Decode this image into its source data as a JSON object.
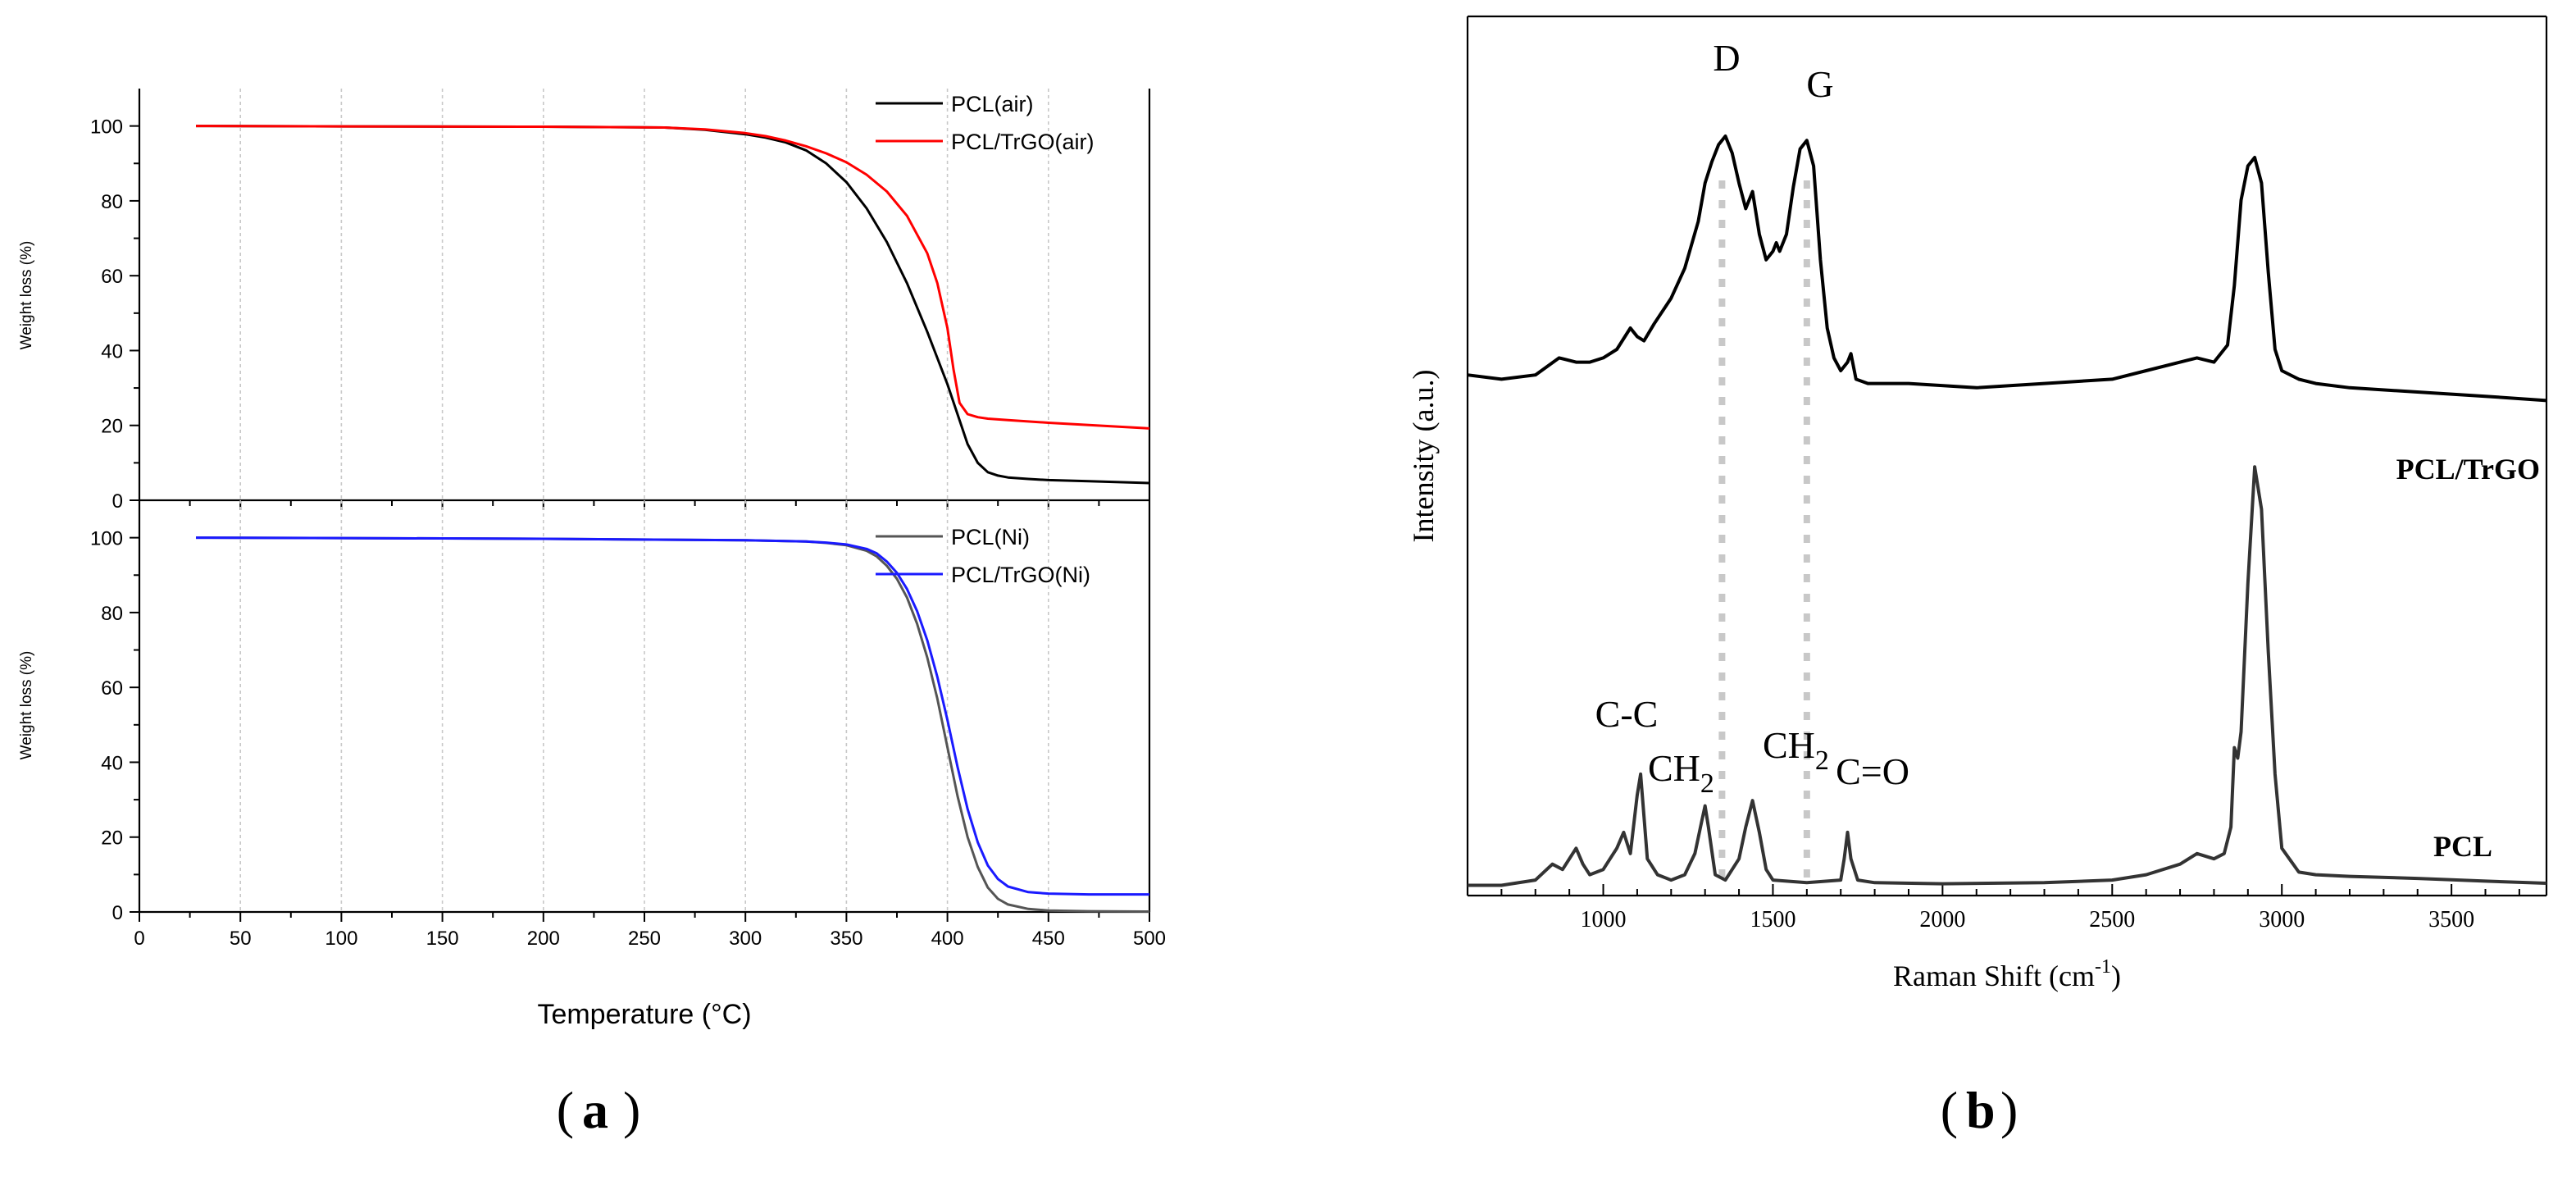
{
  "figure": {
    "panel_a_label": "a",
    "panel_b_label": "b"
  },
  "chart_data": [
    {
      "type": "line",
      "panel": "a-top",
      "title": "",
      "xlabel": "Temperature (°C)",
      "ylabel": "Weight loss (%)",
      "xlim": [
        0,
        500
      ],
      "ylim": [
        0,
        110
      ],
      "x_ticks": [
        0,
        50,
        100,
        150,
        200,
        250,
        300,
        350,
        400,
        450,
        500
      ],
      "y_ticks": [
        0,
        20,
        40,
        60,
        80,
        100
      ],
      "grid": "vertical-dashed",
      "legend_placement": "top-right",
      "series": [
        {
          "name": "PCL(air)",
          "color": "#000000",
          "x": [
            28,
            100,
            200,
            260,
            280,
            300,
            310,
            320,
            330,
            340,
            350,
            360,
            370,
            380,
            390,
            400,
            405,
            410,
            415,
            420,
            425,
            430,
            440,
            450,
            470,
            500
          ],
          "y": [
            100,
            99.9,
            99.8,
            99.6,
            99,
            97.8,
            96.9,
            95.6,
            93.5,
            90,
            85,
            78,
            69,
            58,
            45,
            31,
            23,
            15,
            10,
            7.5,
            6.6,
            6.1,
            5.7,
            5.4,
            5.1,
            4.6
          ]
        },
        {
          "name": "PCL/TrGO(air)",
          "color": "#ff0000",
          "x": [
            28,
            100,
            200,
            260,
            280,
            300,
            310,
            320,
            330,
            340,
            350,
            360,
            370,
            380,
            390,
            395,
            400,
            403,
            406,
            410,
            415,
            420,
            430,
            450,
            470,
            500
          ],
          "y": [
            100,
            99.9,
            99.8,
            99.6,
            99.1,
            98.1,
            97.3,
            96.1,
            94.6,
            92.7,
            90.3,
            87,
            82.5,
            76,
            66,
            58,
            46,
            35,
            26,
            23,
            22.2,
            21.8,
            21.4,
            20.7,
            20.1,
            19.2
          ]
        }
      ]
    },
    {
      "type": "line",
      "panel": "a-bottom",
      "title": "",
      "xlabel": "Temperature (°C)",
      "ylabel": "Weight loss (%)",
      "xlim": [
        0,
        500
      ],
      "ylim": [
        0,
        110
      ],
      "x_ticks": [
        0,
        50,
        100,
        150,
        200,
        250,
        300,
        350,
        400,
        450,
        500
      ],
      "y_ticks": [
        0,
        20,
        40,
        60,
        80,
        100
      ],
      "grid": "vertical-dashed",
      "legend_placement": "top-right",
      "series": [
        {
          "name": "PCL(Ni)",
          "color": "#555555",
          "x": [
            28,
            100,
            200,
            300,
            330,
            340,
            350,
            360,
            365,
            370,
            375,
            380,
            385,
            390,
            395,
            400,
            405,
            410,
            415,
            420,
            425,
            430,
            440,
            450,
            470,
            500
          ],
          "y": [
            100,
            99.9,
            99.7,
            99.3,
            99,
            98.6,
            98,
            96.5,
            95,
            92.5,
            89,
            84,
            77,
            68,
            57,
            44,
            31,
            20,
            12,
            6.5,
            3.5,
            2,
            0.8,
            0.4,
            0.2,
            0.1
          ]
        },
        {
          "name": "PCL/TrGO(Ni)",
          "color": "#1a1aff",
          "x": [
            28,
            100,
            200,
            300,
            330,
            340,
            350,
            360,
            365,
            370,
            375,
            380,
            385,
            390,
            395,
            400,
            405,
            410,
            415,
            420,
            425,
            430,
            440,
            450,
            470,
            500
          ],
          "y": [
            100,
            99.9,
            99.7,
            99.3,
            99,
            98.7,
            98.2,
            97,
            95.8,
            93.6,
            90.6,
            86.3,
            80.4,
            72.6,
            62.8,
            51.3,
            38.8,
            27.5,
            18.6,
            12.4,
            8.8,
            6.8,
            5.3,
            4.9,
            4.7,
            4.7
          ]
        }
      ]
    },
    {
      "type": "line",
      "panel": "b",
      "title": "",
      "xlabel": "Raman Shift (cm-1)",
      "xlabel_main": "Raman Shift (cm",
      "xlabel_sup": "-1",
      "xlabel_close": ")",
      "ylabel": "Intensity (a.u.)",
      "xlim": [
        600,
        3780
      ],
      "ylim": [
        0,
        100
      ],
      "x_ticks": [
        1000,
        1500,
        2000,
        2500,
        3000,
        3500
      ],
      "grid": "off",
      "series": [
        {
          "name": "PCL/TrGO",
          "color": "#000000",
          "x": [
            600,
            700,
            800,
            870,
            920,
            960,
            1000,
            1040,
            1080,
            1100,
            1120,
            1150,
            1200,
            1240,
            1280,
            1300,
            1320,
            1340,
            1360,
            1380,
            1400,
            1420,
            1440,
            1460,
            1480,
            1500,
            1510,
            1520,
            1540,
            1560,
            1580,
            1600,
            1620,
            1640,
            1660,
            1680,
            1700,
            1720,
            1730,
            1745,
            1780,
            1900,
            2100,
            2300,
            2500,
            2600,
            2700,
            2750,
            2800,
            2840,
            2860,
            2880,
            2900,
            2920,
            2940,
            2960,
            2980,
            3000,
            3050,
            3100,
            3200,
            3400,
            3600,
            3780
          ],
          "y": [
            39,
            38,
            39,
            43,
            42,
            42,
            43,
            45,
            50,
            48,
            47,
            51,
            57,
            64,
            75,
            84,
            89,
            93,
            95,
            91,
            84,
            78,
            82,
            72,
            66,
            68,
            70,
            68,
            72,
            83,
            92,
            94,
            88,
            66,
            50,
            43,
            40,
            42,
            44,
            38,
            37,
            37,
            36,
            37,
            38,
            40,
            42,
            43,
            42,
            46,
            60,
            80,
            88,
            90,
            84,
            63,
            45,
            40,
            38,
            37,
            36,
            35,
            34,
            33
          ]
        },
        {
          "name": "PCL",
          "color": "#333333",
          "x": [
            600,
            700,
            800,
            850,
            880,
            900,
            920,
            940,
            960,
            1000,
            1020,
            1040,
            1060,
            1080,
            1100,
            1110,
            1130,
            1160,
            1200,
            1240,
            1270,
            1290,
            1300,
            1310,
            1330,
            1360,
            1400,
            1420,
            1440,
            1460,
            1480,
            1500,
            1600,
            1700,
            1710,
            1720,
            1730,
            1750,
            1800,
            2000,
            2300,
            2500,
            2600,
            2700,
            2750,
            2800,
            2830,
            2850,
            2860,
            2870,
            2880,
            2900,
            2920,
            2940,
            2960,
            2980,
            3000,
            3050,
            3100,
            3200,
            3400,
            3600,
            3780
          ],
          "y": [
            1,
            1,
            2,
            5,
            4,
            6,
            8,
            5,
            3,
            4,
            6,
            8,
            11,
            7,
            18,
            22,
            6,
            3,
            2,
            3,
            7,
            13,
            16,
            12,
            3,
            2,
            6,
            12,
            17,
            11,
            4,
            2,
            1.5,
            2,
            6,
            11,
            6,
            2,
            1.5,
            1.3,
            1.5,
            2,
            3,
            5,
            7,
            6,
            7,
            12,
            27,
            25,
            30,
            58,
            80,
            72,
            45,
            22,
            8,
            3.5,
            3,
            2.7,
            2.3,
            1.8,
            1.4
          ]
        }
      ],
      "series_labels": [
        "PCL/TrGO",
        "PCL"
      ],
      "annotations": {
        "D": "D",
        "G": "G",
        "C_C": "C-C",
        "CH2_main": "CH",
        "CH2_sub": "2",
        "C_O": "C=O"
      },
      "markers": [
        1350,
        1600
      ]
    }
  ]
}
